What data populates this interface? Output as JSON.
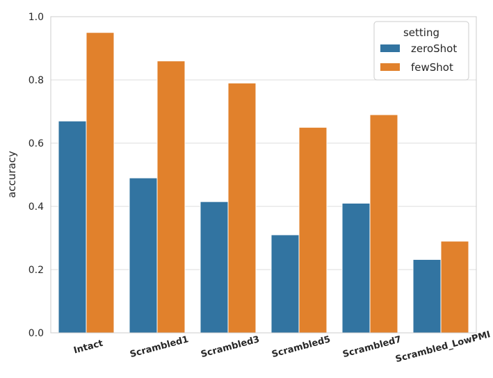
{
  "chart_data": {
    "type": "bar",
    "categories": [
      "Intact",
      "Scrambled1",
      "Scrambled3",
      "Scrambled5",
      "Scrambled7",
      "Scrambled_LowPMI"
    ],
    "series": [
      {
        "name": "zeroShot",
        "color": "#3274a1",
        "values": [
          0.67,
          0.49,
          0.415,
          0.31,
          0.41,
          0.232
        ]
      },
      {
        "name": "fewShot",
        "color": "#e1812c",
        "values": [
          0.95,
          0.86,
          0.79,
          0.65,
          0.69,
          0.29
        ]
      }
    ],
    "ylabel": "accuracy",
    "xlabel": "",
    "ylim": [
      0,
      1.0
    ],
    "yticks": [
      "0.0",
      "0.2",
      "0.4",
      "0.6",
      "0.8",
      "1.0"
    ],
    "legend": {
      "title": "setting",
      "position": "top-right"
    },
    "grid": true
  }
}
